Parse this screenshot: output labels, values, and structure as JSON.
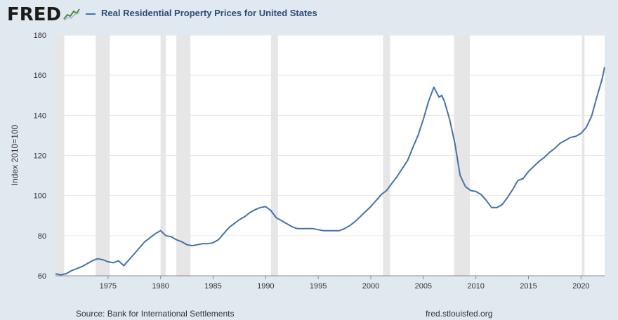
{
  "header": {
    "logo_text": "FRED",
    "logo_icon": "line-chart-icon",
    "legend_label": "Real Residential Property Prices for United States",
    "series_color": "#4572a7"
  },
  "footer": {
    "source": "Source: Bank for International Settlements",
    "url": "fred.stlouisfed.org"
  },
  "chart_data": {
    "type": "line",
    "title": "",
    "xlabel": "",
    "ylabel": "Index 2010=100",
    "xlim": [
      1970.0,
      2022.25
    ],
    "ylim": [
      60,
      180
    ],
    "x_ticks": [
      1975,
      1980,
      1985,
      1990,
      1995,
      2000,
      2005,
      2010,
      2015,
      2020
    ],
    "x_tick_labels": [
      "1975",
      "1980",
      "1985",
      "1990",
      "1995",
      "2000",
      "2005",
      "2010",
      "2015",
      "2020"
    ],
    "y_ticks": [
      60,
      80,
      100,
      120,
      140,
      160,
      180
    ],
    "y_tick_labels": [
      "60",
      "80",
      "100",
      "120",
      "140",
      "160",
      "180"
    ],
    "grid": "horizontal",
    "recessions": [
      [
        1970.0,
        1970.83
      ],
      [
        1973.83,
        1975.17
      ],
      [
        1980.0,
        1980.5
      ],
      [
        1981.5,
        1982.83
      ],
      [
        1990.5,
        1991.17
      ],
      [
        2001.17,
        2001.83
      ],
      [
        2007.92,
        2009.42
      ],
      [
        2020.08,
        2020.33
      ]
    ],
    "series": [
      {
        "name": "Real Residential Property Prices for United States",
        "points": [
          [
            1970.0,
            61.0
          ],
          [
            1970.5,
            60.5
          ],
          [
            1971.0,
            61.0
          ],
          [
            1971.5,
            62.5
          ],
          [
            1972.0,
            63.5
          ],
          [
            1972.5,
            64.5
          ],
          [
            1973.0,
            66.0
          ],
          [
            1973.5,
            67.5
          ],
          [
            1974.0,
            68.5
          ],
          [
            1974.5,
            68.0
          ],
          [
            1975.0,
            67.0
          ],
          [
            1975.5,
            66.5
          ],
          [
            1976.0,
            67.5
          ],
          [
            1976.5,
            65.0
          ],
          [
            1977.0,
            68.0
          ],
          [
            1977.5,
            71.0
          ],
          [
            1978.0,
            74.0
          ],
          [
            1978.5,
            77.0
          ],
          [
            1979.0,
            79.0
          ],
          [
            1979.5,
            81.0
          ],
          [
            1980.0,
            82.5
          ],
          [
            1980.5,
            80.0
          ],
          [
            1981.0,
            79.5
          ],
          [
            1981.5,
            78.0
          ],
          [
            1982.0,
            77.0
          ],
          [
            1982.5,
            75.5
          ],
          [
            1983.0,
            75.0
          ],
          [
            1983.5,
            75.5
          ],
          [
            1984.0,
            76.0
          ],
          [
            1984.5,
            76.0
          ],
          [
            1985.0,
            76.5
          ],
          [
            1985.5,
            78.0
          ],
          [
            1986.0,
            81.0
          ],
          [
            1986.5,
            84.0
          ],
          [
            1987.0,
            86.0
          ],
          [
            1987.5,
            88.0
          ],
          [
            1988.0,
            89.5
          ],
          [
            1988.5,
            91.5
          ],
          [
            1989.0,
            93.0
          ],
          [
            1989.5,
            94.0
          ],
          [
            1990.0,
            94.5
          ],
          [
            1990.5,
            92.5
          ],
          [
            1991.0,
            89.0
          ],
          [
            1991.5,
            87.5
          ],
          [
            1992.0,
            86.0
          ],
          [
            1992.5,
            84.5
          ],
          [
            1993.0,
            83.5
          ],
          [
            1993.5,
            83.5
          ],
          [
            1994.0,
            83.5
          ],
          [
            1994.5,
            83.5
          ],
          [
            1995.0,
            83.0
          ],
          [
            1995.5,
            82.5
          ],
          [
            1996.0,
            82.5
          ],
          [
            1996.5,
            82.5
          ],
          [
            1997.0,
            82.5
          ],
          [
            1997.5,
            83.5
          ],
          [
            1998.0,
            85.0
          ],
          [
            1998.5,
            87.0
          ],
          [
            1999.0,
            89.5
          ],
          [
            1999.5,
            92.0
          ],
          [
            2000.0,
            94.5
          ],
          [
            2000.5,
            97.5
          ],
          [
            2001.0,
            100.5
          ],
          [
            2001.5,
            102.5
          ],
          [
            2002.0,
            106.0
          ],
          [
            2002.5,
            109.5
          ],
          [
            2003.0,
            113.5
          ],
          [
            2003.5,
            117.5
          ],
          [
            2004.0,
            124.0
          ],
          [
            2004.5,
            130.0
          ],
          [
            2005.0,
            138.0
          ],
          [
            2005.5,
            147.0
          ],
          [
            2006.0,
            154.0
          ],
          [
            2006.5,
            149.0
          ],
          [
            2006.75,
            150.0
          ],
          [
            2007.0,
            147.0
          ],
          [
            2007.5,
            138.0
          ],
          [
            2008.0,
            126.0
          ],
          [
            2008.5,
            110.0
          ],
          [
            2009.0,
            104.5
          ],
          [
            2009.5,
            102.5
          ],
          [
            2010.0,
            102.0
          ],
          [
            2010.5,
            100.5
          ],
          [
            2011.0,
            97.5
          ],
          [
            2011.5,
            94.0
          ],
          [
            2012.0,
            94.0
          ],
          [
            2012.5,
            95.5
          ],
          [
            2013.0,
            99.0
          ],
          [
            2013.5,
            103.0
          ],
          [
            2014.0,
            107.5
          ],
          [
            2014.5,
            108.5
          ],
          [
            2015.0,
            112.0
          ],
          [
            2015.5,
            114.5
          ],
          [
            2016.0,
            117.0
          ],
          [
            2016.5,
            119.0
          ],
          [
            2017.0,
            121.5
          ],
          [
            2017.5,
            123.5
          ],
          [
            2018.0,
            126.0
          ],
          [
            2018.5,
            127.5
          ],
          [
            2019.0,
            129.0
          ],
          [
            2019.5,
            129.5
          ],
          [
            2020.0,
            131.0
          ],
          [
            2020.5,
            134.0
          ],
          [
            2021.0,
            139.5
          ],
          [
            2021.5,
            149.0
          ],
          [
            2022.0,
            158.0
          ],
          [
            2022.25,
            164.0
          ]
        ]
      }
    ]
  }
}
